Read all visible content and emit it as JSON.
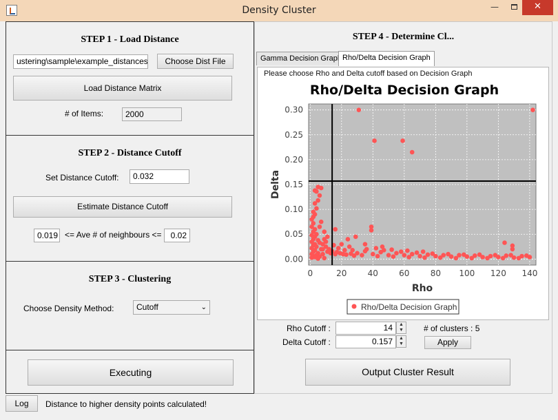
{
  "window": {
    "title": "Density Cluster",
    "close": "✕",
    "minimize": "—"
  },
  "step1": {
    "title": "STEP 1 - Load Distance",
    "file_path": "ustering\\sample\\example_distances.dat",
    "choose_button": "Choose Dist File",
    "load_button": "Load Distance Matrix",
    "items_label": "# of Items:",
    "items_value": "2000"
  },
  "step2": {
    "title": "STEP 2 - Distance Cutoff",
    "cutoff_label": "Set Distance Cutoff:",
    "cutoff_value": "0.032",
    "estimate_button": "Estimate Distance Cutoff",
    "neigh_min": "0.019",
    "neigh_label": "<= Ave # of neighbours <=",
    "neigh_max": "0.02"
  },
  "step3": {
    "title": "STEP 3 - Clustering",
    "method_label": "Choose Density Method:",
    "method_value": "Cutoff"
  },
  "execute_button": "Executing",
  "step4": {
    "title": "STEP 4 - Determine Cl...",
    "tabs": [
      {
        "label": "Gamma Decision Graph",
        "active": false
      },
      {
        "label": "Rho/Delta Decision Graph",
        "active": true
      }
    ],
    "instruction": "Please choose Rho and Delta cutoff based on Decision Graph",
    "rho_cutoff_label": "Rho Cutoff :",
    "rho_cutoff_value": "14",
    "delta_cutoff_label": "Delta Cutoff :",
    "delta_cutoff_value": "0.157",
    "clusters_label": "# of clusters : 5",
    "apply_button": "Apply",
    "output_button": "Output Cluster Result"
  },
  "status": {
    "log_button": "Log",
    "message": "Distance to higher density points calculated!"
  },
  "colors": {
    "point": "#ff5555",
    "plot_bg": "#c0c0c0",
    "cutoff_line": "#000000",
    "close_button": "#c7392b",
    "titlebar": "#f4d7b8"
  },
  "chart_data": {
    "type": "scatter",
    "title": "Rho/Delta Decision Graph",
    "xlabel": "Rho",
    "ylabel": "Delta",
    "xlim": [
      -1,
      144
    ],
    "ylim": [
      -0.012,
      0.312
    ],
    "xticks": [
      0,
      20,
      40,
      60,
      80,
      100,
      120,
      140
    ],
    "yticks": [
      0.0,
      0.05,
      0.1,
      0.15,
      0.2,
      0.25,
      0.3
    ],
    "ytick_labels": [
      "0.00",
      "0.05",
      "0.10",
      "0.15",
      "0.20",
      "0.25",
      "0.30"
    ],
    "grid": true,
    "legend": "bottom",
    "cutoff": {
      "rho": 14,
      "delta": 0.157
    },
    "series": [
      {
        "name": "Rho/Delta Decision Graph",
        "points": [
          [
            31,
            0.3
          ],
          [
            142,
            0.3
          ],
          [
            41,
            0.238
          ],
          [
            59,
            0.238
          ],
          [
            65,
            0.215
          ],
          [
            5,
            0.145
          ],
          [
            7,
            0.143
          ],
          [
            3,
            0.138
          ],
          [
            4,
            0.136
          ],
          [
            6,
            0.128
          ],
          [
            5,
            0.118
          ],
          [
            3,
            0.112
          ],
          [
            4,
            0.102
          ],
          [
            2,
            0.095
          ],
          [
            3,
            0.09
          ],
          [
            2,
            0.085
          ],
          [
            1,
            0.08
          ],
          [
            2,
            0.072
          ],
          [
            1,
            0.065
          ],
          [
            3,
            0.06
          ],
          [
            2,
            0.055
          ],
          [
            4,
            0.05
          ],
          [
            1,
            0.048
          ],
          [
            3,
            0.045
          ],
          [
            2,
            0.04
          ],
          [
            5,
            0.038
          ],
          [
            1,
            0.035
          ],
          [
            6,
            0.033
          ],
          [
            3,
            0.03
          ],
          [
            2,
            0.028
          ],
          [
            4,
            0.025
          ],
          [
            1,
            0.022
          ],
          [
            7,
            0.02
          ],
          [
            3,
            0.018
          ],
          [
            2,
            0.015
          ],
          [
            5,
            0.012
          ],
          [
            1,
            0.01
          ],
          [
            8,
            0.01
          ],
          [
            4,
            0.008
          ],
          [
            2,
            0.006
          ],
          [
            6,
            0.005
          ],
          [
            3,
            0.004
          ],
          [
            1,
            0.003
          ],
          [
            9,
            0.002
          ],
          [
            5,
            0.001
          ],
          [
            16,
            0.06
          ],
          [
            39,
            0.065
          ],
          [
            39,
            0.058
          ],
          [
            29,
            0.045
          ],
          [
            24,
            0.04
          ],
          [
            35,
            0.03
          ],
          [
            46,
            0.025
          ],
          [
            124,
            0.033
          ],
          [
            129,
            0.027
          ],
          [
            129,
            0.02
          ],
          [
            20,
            0.03
          ],
          [
            25,
            0.025
          ],
          [
            15,
            0.028
          ],
          [
            18,
            0.022
          ],
          [
            12,
            0.02
          ],
          [
            22,
            0.018
          ],
          [
            10,
            0.025
          ],
          [
            11,
            0.015
          ],
          [
            13,
            0.012
          ],
          [
            16,
            0.01
          ],
          [
            30,
            0.012
          ],
          [
            40,
            0.01
          ],
          [
            50,
            0.008
          ],
          [
            60,
            0.008
          ],
          [
            70,
            0.006
          ],
          [
            80,
            0.006
          ],
          [
            90,
            0.005
          ],
          [
            100,
            0.005
          ],
          [
            110,
            0.004
          ],
          [
            120,
            0.004
          ],
          [
            130,
            0.003
          ],
          [
            140,
            0.004
          ],
          [
            135,
            0.006
          ],
          [
            125,
            0.007
          ],
          [
            115,
            0.006
          ],
          [
            105,
            0.007
          ],
          [
            95,
            0.008
          ],
          [
            85,
            0.008
          ],
          [
            75,
            0.009
          ],
          [
            65,
            0.01
          ],
          [
            55,
            0.012
          ],
          [
            45,
            0.014
          ],
          [
            35,
            0.016
          ],
          [
            27,
            0.018
          ],
          [
            33,
            0.008
          ],
          [
            43,
            0.006
          ],
          [
            53,
            0.005
          ],
          [
            63,
            0.004
          ],
          [
            73,
            0.003
          ],
          [
            83,
            0.003
          ],
          [
            93,
            0.002
          ],
          [
            103,
            0.002
          ],
          [
            113,
            0.002
          ],
          [
            123,
            0.002
          ],
          [
            133,
            0.002
          ],
          [
            8,
            0.03
          ],
          [
            9,
            0.04
          ],
          [
            10,
            0.035
          ],
          [
            11,
            0.045
          ],
          [
            9,
            0.055
          ],
          [
            6,
            0.065
          ],
          [
            7,
            0.075
          ],
          [
            8,
            0.02
          ],
          [
            14,
            0.016
          ],
          [
            17,
            0.014
          ],
          [
            19,
            0.012
          ],
          [
            21,
            0.01
          ],
          [
            23,
            0.009
          ],
          [
            26,
            0.011
          ],
          [
            28,
            0.007
          ],
          [
            47,
            0.018
          ],
          [
            58,
            0.015
          ],
          [
            68,
            0.013
          ],
          [
            78,
            0.011
          ],
          [
            88,
            0.01
          ],
          [
            98,
            0.009
          ],
          [
            108,
            0.009
          ],
          [
            118,
            0.008
          ],
          [
            128,
            0.008
          ],
          [
            138,
            0.007
          ],
          [
            36,
            0.02
          ],
          [
            42,
            0.022
          ],
          [
            52,
            0.019
          ],
          [
            62,
            0.017
          ],
          [
            72,
            0.015
          ]
        ]
      }
    ]
  }
}
